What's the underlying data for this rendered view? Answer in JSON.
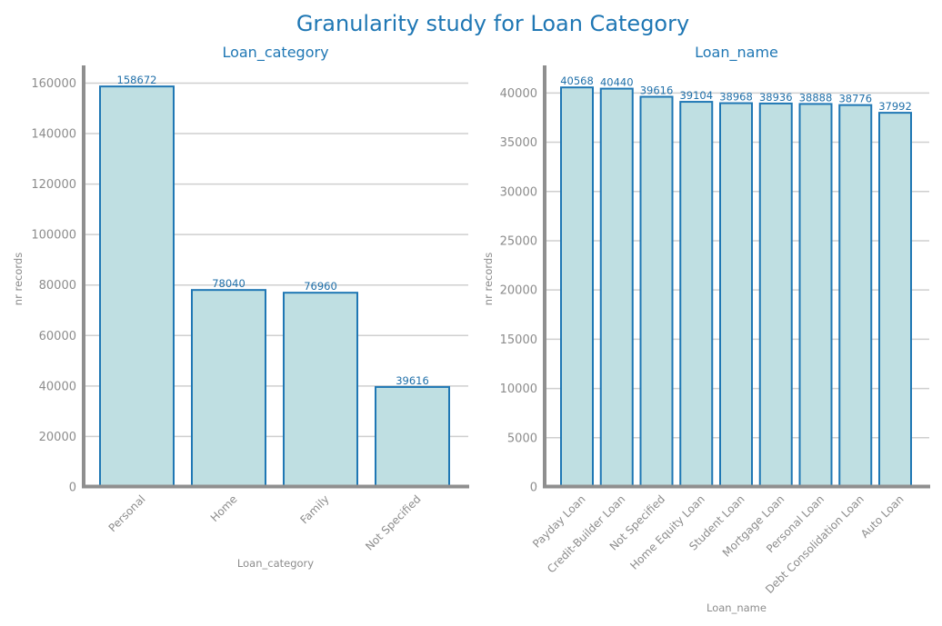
{
  "figure": {
    "title": "Granularity study for Loan Category"
  },
  "chart_data": [
    {
      "type": "bar",
      "title": "Loan_category",
      "xlabel": "Loan_category",
      "ylabel": "nr records",
      "categories": [
        "Personal",
        "Home",
        "Family",
        "Not Specified"
      ],
      "values": [
        158672,
        78040,
        76960,
        39616
      ],
      "ylim": [
        0,
        167000
      ],
      "yticks": [
        0,
        20000,
        40000,
        60000,
        80000,
        100000,
        120000,
        140000,
        160000
      ],
      "grid": true,
      "bar_fill": "#bfdfe2",
      "bar_edge": "#1f77b4"
    },
    {
      "type": "bar",
      "title": "Loan_name",
      "xlabel": "Loan_name",
      "ylabel": "nr records",
      "categories": [
        "Payday Loan",
        "Credit-Builder Loan",
        "Not Specified",
        "Home Equity Loan",
        "Student Loan",
        "Mortgage Loan",
        "Personal Loan",
        "Debt Consolidation Loan",
        "Auto Loan"
      ],
      "values": [
        40568,
        40440,
        39616,
        39104,
        38968,
        38936,
        38888,
        38776,
        37992
      ],
      "ylim": [
        0,
        42800
      ],
      "yticks": [
        0,
        5000,
        10000,
        15000,
        20000,
        25000,
        30000,
        35000,
        40000
      ],
      "grid": true,
      "bar_fill": "#bfdfe2",
      "bar_edge": "#1f77b4"
    }
  ]
}
